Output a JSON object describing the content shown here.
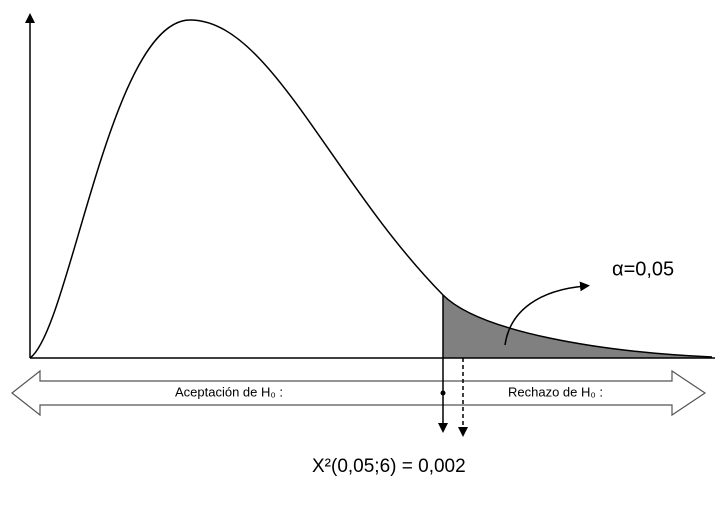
{
  "labels": {
    "alpha": "α=0,05",
    "acceptance": "Aceptación de H₀ :",
    "rejection": "Rechazo de H₀ :",
    "critical": "X²(0,05;6) = 0,002"
  }
}
